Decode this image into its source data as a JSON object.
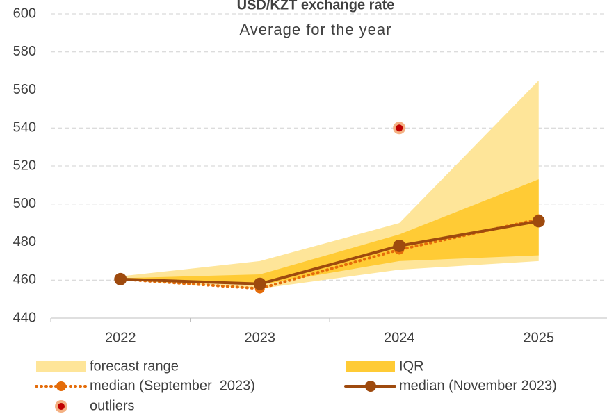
{
  "chart_data": {
    "type": "band-line",
    "title": "USD/KZT exchange rate",
    "subtitle": "Average for the year",
    "categories": [
      "2022",
      "2023",
      "2024",
      "2025"
    ],
    "ylim": [
      440,
      600
    ],
    "yticks": [
      440,
      460,
      480,
      500,
      520,
      540,
      560,
      580,
      600
    ],
    "grid": true,
    "bands": [
      {
        "name": "forecast range",
        "color": "#fee599",
        "low": [
          460,
          455.5,
          465.5,
          470
        ],
        "high": [
          462,
          470,
          490,
          565
        ]
      },
      {
        "name": "IQR",
        "color": "#ffcb35",
        "low": [
          460,
          457.5,
          470,
          473
        ],
        "high": [
          461,
          463,
          484,
          513
        ]
      }
    ],
    "series": [
      {
        "name": "median (September  2023)",
        "color": "#e46c0a",
        "style": "dotted",
        "values": [
          460.5,
          455.5,
          476,
          492
        ]
      },
      {
        "name": "median (November 2023)",
        "color": "#9e4a0e",
        "style": "solid",
        "values": [
          460.5,
          458,
          478,
          491
        ]
      }
    ],
    "outliers": {
      "name": "outliers",
      "color": "#c00000",
      "ring": "#f4b183",
      "values": [
        null,
        null,
        540,
        null
      ]
    }
  }
}
